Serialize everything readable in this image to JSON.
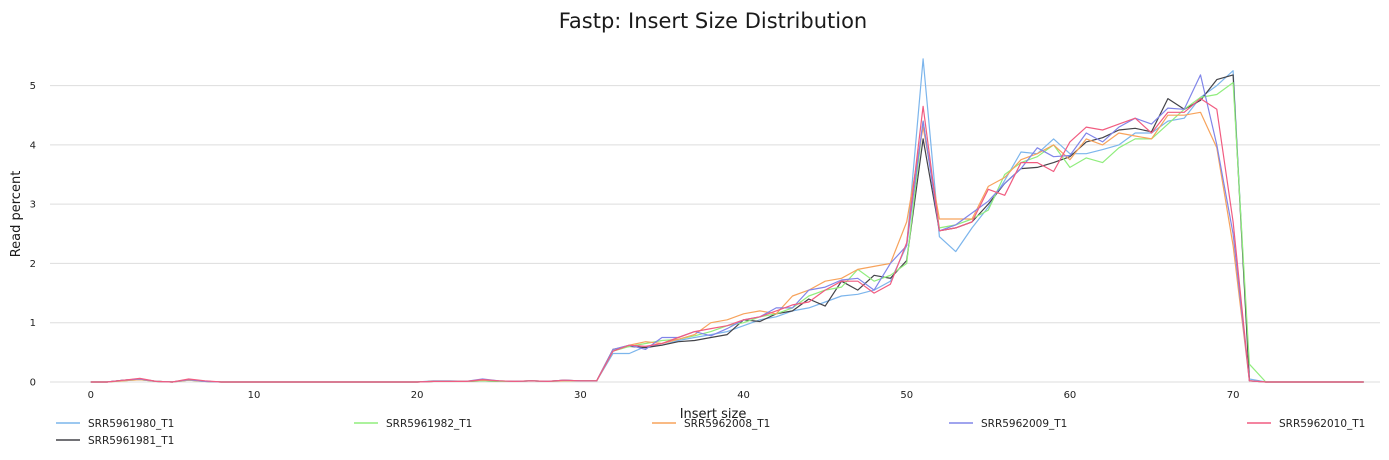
{
  "chart_data": {
    "type": "line",
    "title": "Fastp: Insert Size Distribution",
    "xlabel": "Insert size",
    "ylabel": "Read percent",
    "xlim": [
      -2.5,
      79
    ],
    "ylim": [
      0,
      5.6
    ],
    "xticks": [
      0,
      10,
      20,
      30,
      40,
      50,
      60,
      70
    ],
    "yticks": [
      0,
      1,
      2,
      3,
      4,
      5
    ],
    "grid": "horizontal",
    "legend": "bottom",
    "x": [
      0,
      1,
      2,
      3,
      4,
      5,
      6,
      7,
      8,
      9,
      10,
      11,
      12,
      13,
      14,
      15,
      16,
      17,
      18,
      19,
      20,
      21,
      22,
      23,
      24,
      25,
      26,
      27,
      28,
      29,
      30,
      31,
      32,
      33,
      34,
      35,
      36,
      37,
      38,
      39,
      40,
      41,
      42,
      43,
      44,
      45,
      46,
      47,
      48,
      49,
      50,
      51,
      52,
      53,
      54,
      55,
      56,
      57,
      58,
      59,
      60,
      61,
      62,
      63,
      64,
      65,
      66,
      67,
      68,
      69,
      70,
      71,
      72,
      73,
      74,
      75,
      76,
      77,
      78
    ],
    "series": [
      {
        "name": "SRR5961980_T1",
        "color": "#7cb5ec",
        "values": [
          0,
          0,
          0.03,
          0.04,
          0.01,
          0,
          0.03,
          0.01,
          0,
          0,
          0,
          0,
          0,
          0,
          0,
          0,
          0,
          0,
          0,
          0,
          0,
          0.02,
          0.02,
          0.01,
          0.02,
          0.01,
          0.01,
          0.02,
          0.01,
          0.02,
          0.02,
          0.02,
          0.48,
          0.48,
          0.6,
          0.62,
          0.7,
          0.75,
          0.8,
          0.85,
          0.95,
          1.05,
          1.1,
          1.2,
          1.25,
          1.35,
          1.45,
          1.48,
          1.55,
          1.7,
          2.3,
          5.45,
          2.45,
          2.2,
          2.6,
          2.95,
          3.4,
          3.88,
          3.85,
          4.1,
          3.85,
          3.85,
          3.92,
          4.0,
          4.2,
          4.2,
          4.4,
          4.45,
          4.8,
          5.0,
          5.25,
          0.05,
          0,
          0,
          0,
          0,
          0,
          0,
          0
        ]
      },
      {
        "name": "SRR5961981_T1",
        "color": "#434348",
        "values": [
          0,
          0,
          0.03,
          0.05,
          0.01,
          0,
          0.04,
          0.01,
          0,
          0,
          0,
          0,
          0,
          0,
          0,
          0,
          0,
          0,
          0,
          0,
          0,
          0.01,
          0.01,
          0.01,
          0.02,
          0.01,
          0.01,
          0.02,
          0.01,
          0.03,
          0.02,
          0.02,
          0.55,
          0.6,
          0.58,
          0.62,
          0.68,
          0.7,
          0.75,
          0.8,
          1.05,
          1.02,
          1.15,
          1.2,
          1.4,
          1.28,
          1.7,
          1.55,
          1.8,
          1.75,
          2.05,
          4.1,
          2.55,
          2.6,
          2.7,
          3.0,
          3.35,
          3.6,
          3.62,
          3.7,
          3.8,
          4.05,
          4.12,
          4.25,
          4.28,
          4.22,
          4.78,
          4.6,
          4.75,
          5.1,
          5.18,
          0.02,
          0,
          0,
          0,
          0,
          0,
          0,
          0
        ]
      },
      {
        "name": "SRR5961982_T1",
        "color": "#90ed7d",
        "values": [
          0,
          0,
          0.02,
          0.04,
          0.01,
          0,
          0.03,
          0.01,
          0,
          0,
          0,
          0,
          0,
          0,
          0,
          0,
          0,
          0,
          0,
          0,
          0,
          0.01,
          0.01,
          0.01,
          0.02,
          0.01,
          0.01,
          0.02,
          0.01,
          0.02,
          0.02,
          0.02,
          0.52,
          0.6,
          0.65,
          0.7,
          0.72,
          0.78,
          0.85,
          0.95,
          1.0,
          1.1,
          1.15,
          1.25,
          1.45,
          1.55,
          1.6,
          1.9,
          1.7,
          1.8,
          2.0,
          4.4,
          2.6,
          2.65,
          2.75,
          2.9,
          3.5,
          3.7,
          3.8,
          4.0,
          3.62,
          3.78,
          3.7,
          3.95,
          4.1,
          4.1,
          4.35,
          4.6,
          4.8,
          4.85,
          5.05,
          0.3,
          0,
          0,
          0,
          0,
          0,
          0,
          0
        ]
      },
      {
        "name": "SRR5962008_T1",
        "color": "#f7a35c",
        "values": [
          0,
          0,
          0.02,
          0.04,
          0.01,
          0,
          0.03,
          0.01,
          0,
          0,
          0,
          0,
          0,
          0,
          0,
          0,
          0,
          0,
          0,
          0,
          0,
          0.01,
          0.01,
          0.01,
          0.03,
          0.02,
          0.01,
          0.02,
          0.01,
          0.02,
          0.02,
          0.02,
          0.55,
          0.62,
          0.68,
          0.65,
          0.72,
          0.8,
          1.0,
          1.05,
          1.15,
          1.2,
          1.15,
          1.45,
          1.55,
          1.7,
          1.75,
          1.9,
          1.95,
          2.0,
          2.7,
          4.3,
          2.75,
          2.75,
          2.75,
          3.3,
          3.45,
          3.75,
          3.85,
          4.0,
          3.75,
          4.1,
          4.0,
          4.2,
          4.15,
          4.1,
          4.5,
          4.5,
          4.55,
          3.95,
          2.3,
          0.02,
          0,
          0,
          0,
          0,
          0,
          0,
          0
        ]
      },
      {
        "name": "SRR5962009_T1",
        "color": "#8085e9",
        "values": [
          0,
          0,
          0.03,
          0.05,
          0.01,
          0,
          0.04,
          0.01,
          0,
          0,
          0,
          0,
          0,
          0,
          0,
          0,
          0,
          0,
          0,
          0,
          0,
          0.01,
          0.01,
          0.01,
          0.05,
          0.02,
          0.01,
          0.02,
          0.01,
          0.03,
          0.02,
          0.02,
          0.55,
          0.62,
          0.55,
          0.75,
          0.75,
          0.85,
          0.78,
          0.9,
          1.05,
          1.1,
          1.25,
          1.25,
          1.55,
          1.6,
          1.72,
          1.75,
          1.55,
          2.0,
          2.3,
          4.4,
          2.55,
          2.65,
          2.85,
          3.05,
          3.35,
          3.6,
          3.95,
          3.8,
          3.82,
          4.2,
          4.05,
          4.3,
          4.45,
          4.35,
          4.62,
          4.6,
          5.18,
          4.0,
          2.5,
          0.02,
          0,
          0,
          0,
          0,
          0,
          0,
          0
        ]
      },
      {
        "name": "SRR5962010_T1",
        "color": "#f15c80",
        "values": [
          0,
          0,
          0.03,
          0.06,
          0.01,
          0,
          0.05,
          0.02,
          0,
          0,
          0,
          0,
          0,
          0,
          0,
          0,
          0,
          0,
          0,
          0,
          0,
          0.01,
          0.01,
          0.01,
          0.04,
          0.02,
          0.01,
          0.02,
          0.01,
          0.03,
          0.02,
          0.02,
          0.52,
          0.62,
          0.6,
          0.65,
          0.75,
          0.85,
          0.9,
          0.95,
          1.05,
          1.1,
          1.2,
          1.3,
          1.35,
          1.55,
          1.7,
          1.7,
          1.5,
          1.65,
          2.35,
          4.65,
          2.55,
          2.6,
          2.7,
          3.25,
          3.15,
          3.7,
          3.7,
          3.55,
          4.05,
          4.3,
          4.25,
          4.35,
          4.45,
          4.2,
          4.55,
          4.55,
          4.78,
          4.6,
          2.7,
          0.02,
          0,
          0,
          0,
          0,
          0,
          0,
          0
        ]
      }
    ],
    "legend_order": [
      "SRR5961980_T1",
      "SRR5961982_T1",
      "SRR5962008_T1",
      "SRR5962009_T1",
      "SRR5962010_T1",
      "SRR5961981_T1"
    ]
  }
}
